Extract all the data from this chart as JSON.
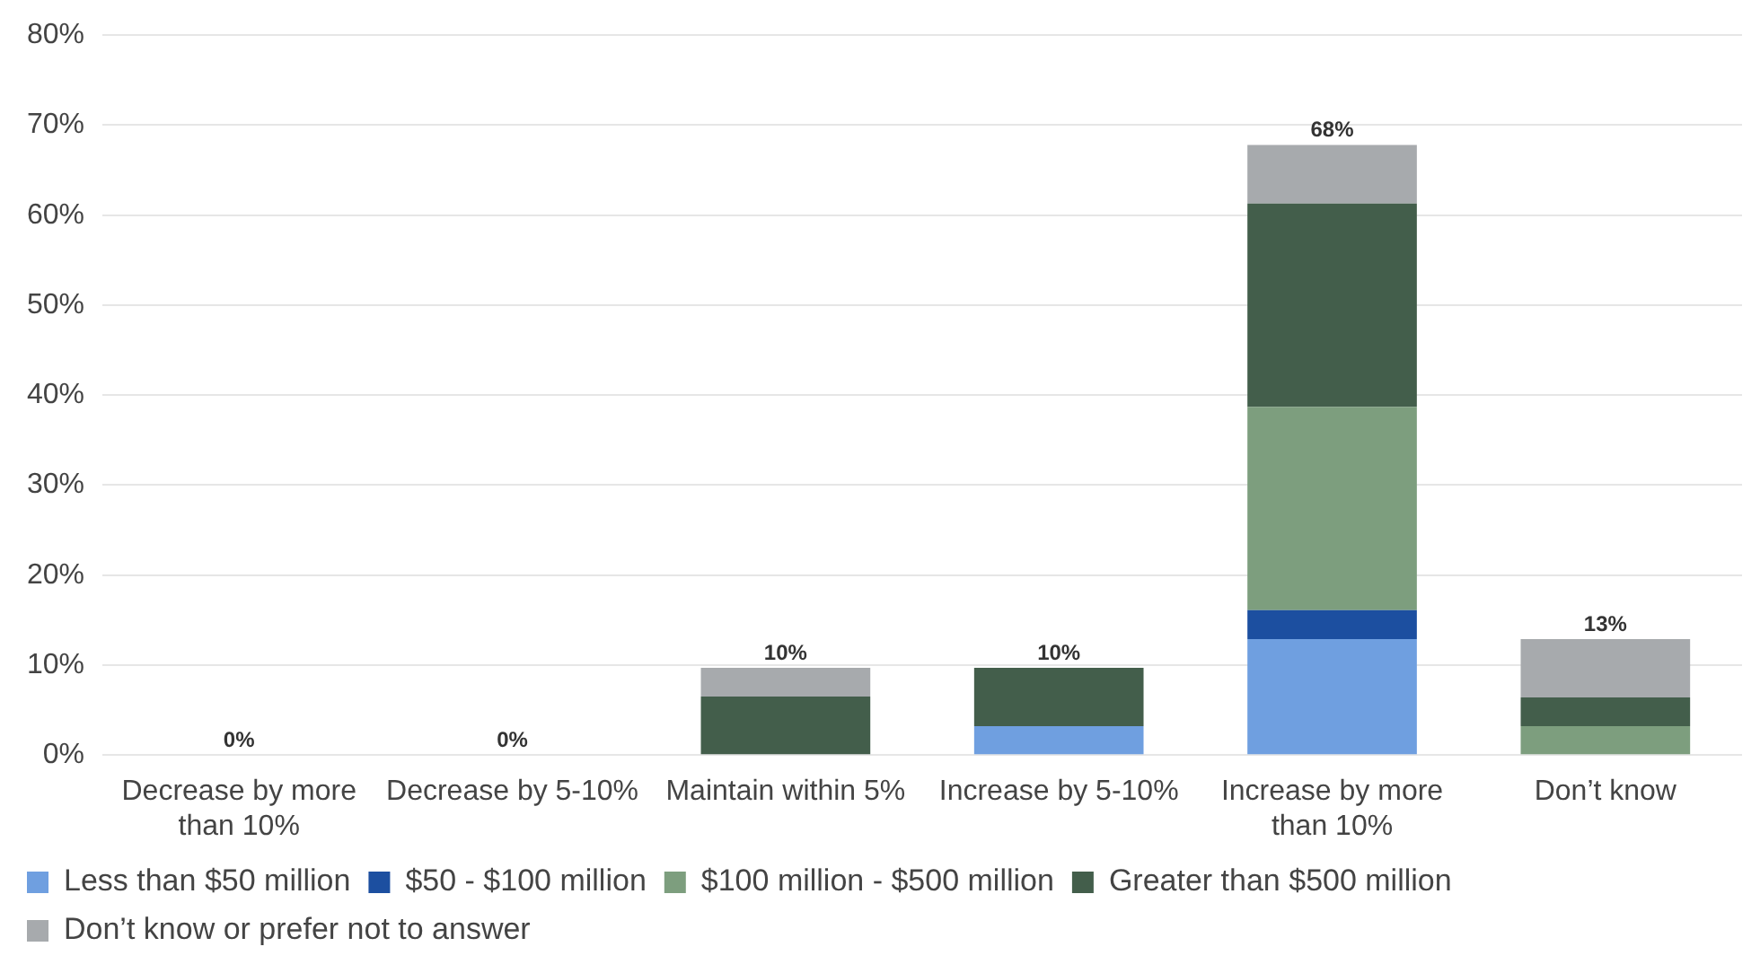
{
  "chart_data": {
    "type": "bar",
    "stacked": true,
    "categories": [
      "Decrease by more than 10%",
      "Decrease by 5-10%",
      "Maintain within 5%",
      "Increase by 5-10%",
      "Increase by more than 10%",
      "Don’t know"
    ],
    "series": [
      {
        "name": "Less than $50 million",
        "color": "#6f9fe0",
        "values": [
          0,
          0,
          0,
          3.2,
          12.9,
          0
        ]
      },
      {
        "name": "$50 - $100 million",
        "color": "#1c4fa0",
        "values": [
          0,
          0,
          0,
          0,
          3.2,
          0
        ]
      },
      {
        "name": "$100 million - $500 million",
        "color": "#7d9e7e",
        "values": [
          0,
          0,
          0,
          0,
          22.6,
          3.2
        ]
      },
      {
        "name": "Greater than $500 million",
        "color": "#435e4b",
        "values": [
          0,
          0,
          6.5,
          6.5,
          22.6,
          3.2
        ]
      },
      {
        "name": "Don’t know or prefer not to answer",
        "color": "#a7aaad",
        "values": [
          0,
          0,
          3.2,
          0,
          6.5,
          6.5
        ]
      }
    ],
    "totals": [
      "0%",
      "0%",
      "10%",
      "10%",
      "68%",
      "13%"
    ],
    "ylim": [
      0,
      80
    ],
    "yticks": [
      {
        "value": 0,
        "label": "0%"
      },
      {
        "value": 10,
        "label": "10%"
      },
      {
        "value": 20,
        "label": "20%"
      },
      {
        "value": 30,
        "label": "30%"
      },
      {
        "value": 40,
        "label": "40%"
      },
      {
        "value": 50,
        "label": "50%"
      },
      {
        "value": 60,
        "label": "60%"
      },
      {
        "value": 70,
        "label": "70%"
      },
      {
        "value": 80,
        "label": "80%"
      }
    ],
    "grid": "y",
    "legend": "bottom"
  }
}
